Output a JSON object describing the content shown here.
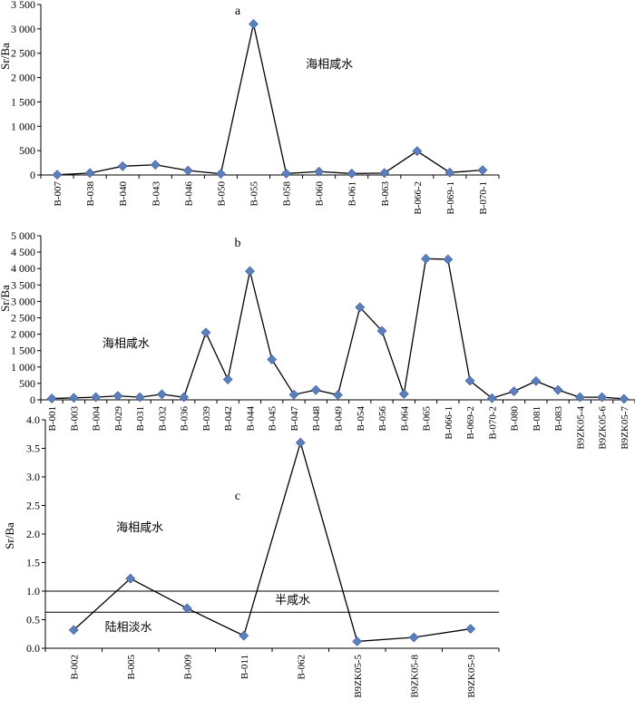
{
  "chart_data": [
    {
      "type": "line",
      "panel_label": "a",
      "ylabel": "Sr/Ba",
      "ylim": [
        0,
        3500
      ],
      "yticks": [
        0,
        500,
        1000,
        1500,
        2000,
        2500,
        3000,
        3500
      ],
      "ytick_labels": [
        "0",
        "500",
        "1 000",
        "1 500",
        "2 000",
        "2 500",
        "3 000",
        "3 500"
      ],
      "categories": [
        "B-007",
        "B-038",
        "B-040",
        "B-043",
        "B-046",
        "B-050",
        "B-055",
        "B-058",
        "B-060",
        "B-061",
        "B-063",
        "B-066-2",
        "B-069-1",
        "B-070-1"
      ],
      "values": [
        5,
        40,
        180,
        210,
        90,
        25,
        3100,
        30,
        70,
        30,
        40,
        490,
        50,
        100
      ],
      "annotations": [
        {
          "text": "海相咸水",
          "x": 7.6,
          "y": 2200
        }
      ],
      "marker_color": "#5b7fbd",
      "line_color": "#000000"
    },
    {
      "type": "line",
      "panel_label": "b",
      "ylabel": "Sr/Ba",
      "ylim": [
        0,
        5000
      ],
      "yticks": [
        0,
        500,
        1000,
        1500,
        2000,
        2500,
        3000,
        3500,
        4000,
        4500,
        5000
      ],
      "ytick_labels": [
        "0",
        "500",
        "1 000",
        "1 500",
        "2 000",
        "2 500",
        "3 000",
        "3 500",
        "4 000",
        "4 500",
        "5 000"
      ],
      "categories": [
        "B-001",
        "B-003",
        "B-004",
        "B-029",
        "B-031",
        "B-032",
        "B-036",
        "B-039",
        "B-042",
        "B-044",
        "B-045",
        "B-047",
        "B-048",
        "B-049",
        "B-054",
        "B-056",
        "B-064",
        "B-065",
        "B-066-1",
        "B-069-2",
        "B-070-2",
        "B-080",
        "B-081",
        "B-083",
        "B9ZK05-4",
        "B9ZK05-6",
        "B9ZK05-7"
      ],
      "values": [
        40,
        60,
        80,
        120,
        80,
        170,
        80,
        2050,
        620,
        3920,
        1230,
        160,
        300,
        150,
        2820,
        2100,
        180,
        4300,
        4280,
        580,
        50,
        260,
        570,
        300,
        80,
        80,
        30
      ],
      "annotations": [
        {
          "text": "海相咸水",
          "x": 2.3,
          "y": 1600
        }
      ],
      "marker_color": "#5b7fbd",
      "line_color": "#000000"
    },
    {
      "type": "line",
      "panel_label": "c",
      "ylabel": "Sr/Ba",
      "ylim": [
        0,
        4.0
      ],
      "yticks": [
        0,
        0.5,
        1.0,
        1.5,
        2.0,
        2.5,
        3.0,
        3.5,
        4.0
      ],
      "ytick_labels": [
        "0.0",
        "0.5",
        "1.0",
        "1.5",
        "2.0",
        "2.5",
        "3.0",
        "3.5",
        "4.0"
      ],
      "categories": [
        "B-002",
        "B-005",
        "B-009",
        "B-011",
        "B-062",
        "B9ZK05-5",
        "B9ZK05-8",
        "B9ZK05-9"
      ],
      "values": [
        0.32,
        1.22,
        0.7,
        0.22,
        3.6,
        0.12,
        0.19,
        0.34
      ],
      "reference_lines": [
        1.0,
        0.63
      ],
      "annotations": [
        {
          "text": "海相咸水",
          "x": 0.75,
          "y": 2.05
        },
        {
          "text": "半咸水",
          "x": 3.55,
          "y": 0.78
        },
        {
          "text": "陆相淡水",
          "x": 0.55,
          "y": 0.3
        }
      ],
      "marker_color": "#5b7fbd",
      "line_color": "#000000"
    }
  ]
}
